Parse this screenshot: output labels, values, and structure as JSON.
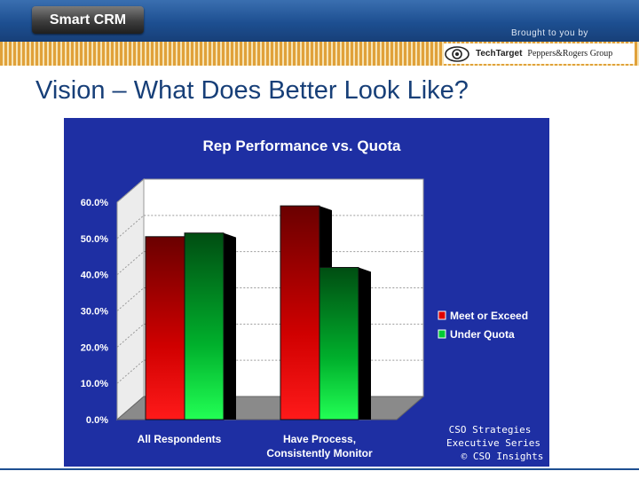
{
  "header": {
    "brand": "Smart CRM",
    "brought_by": "Brought to you by",
    "sponsor_1": "TechTarget",
    "sponsor_2": "Peppers&Rogers Group"
  },
  "slide": {
    "title": "Vision – What Does Better Look Like?"
  },
  "colors": {
    "panel_bg": "#1e2fa3",
    "meet": "#e00000",
    "under": "#00cc33"
  },
  "chart_data": {
    "type": "bar",
    "title": "Rep Performance vs. Quota",
    "categories": [
      "All Respondents",
      "Have Process,\nConsistently Monitor"
    ],
    "series": [
      {
        "name": "Meet or Exceed",
        "values": [
          50.5,
          59.0
        ]
      },
      {
        "name": "Under Quota",
        "values": [
          51.5,
          42.0
        ]
      }
    ],
    "ylim": [
      0,
      60
    ],
    "yticks": [
      0,
      10,
      20,
      30,
      40,
      50,
      60
    ],
    "ytick_labels": [
      "0.0%",
      "10.0%",
      "20.0%",
      "30.0%",
      "40.0%",
      "50.0%",
      "60.0%"
    ],
    "xlabel": "",
    "ylabel": "",
    "legend_position": "right",
    "grid": true,
    "three_d": true
  },
  "watermark": {
    "line1": "CSO Strategies",
    "line2": "Executive Series",
    "line3": "© CSO Insights"
  }
}
